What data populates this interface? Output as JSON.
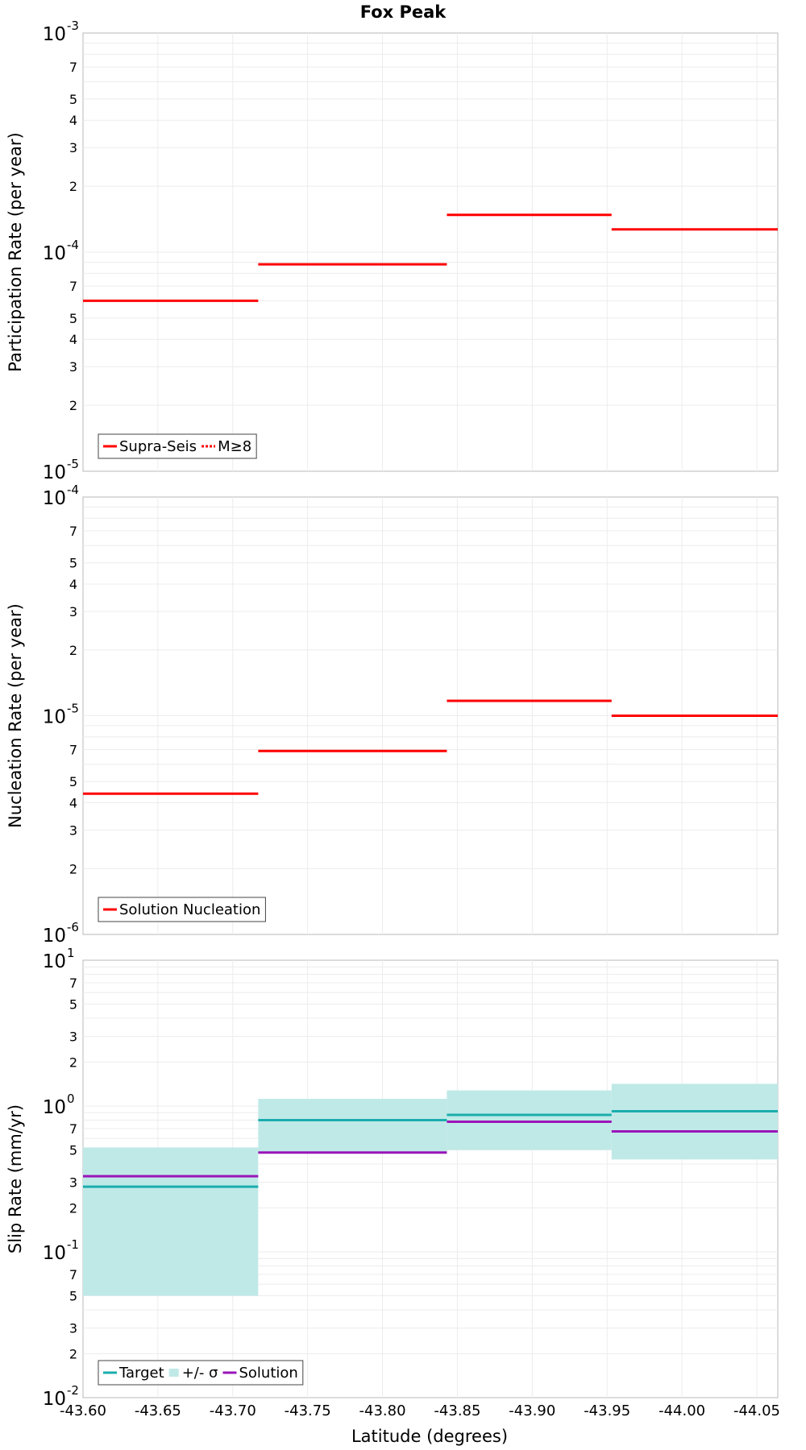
{
  "title": "Fox Peak",
  "xlabel": "Latitude (degrees)",
  "chart_data": [
    {
      "type": "line",
      "name": "participation",
      "ylabel": "Participation Rate (per year)",
      "yscale": "log",
      "ylim": [
        1e-05,
        0.001
      ],
      "major_ticks": [
        {
          "value": 1e-05,
          "base": "10",
          "exp": "-5"
        },
        {
          "value": 0.0001,
          "base": "10",
          "exp": "-4"
        },
        {
          "value": 0.001,
          "base": "10",
          "exp": "-3"
        }
      ],
      "minor_labels": [
        {
          "value": 2e-05,
          "label": "2"
        },
        {
          "value": 3e-05,
          "label": "3"
        },
        {
          "value": 4e-05,
          "label": "4"
        },
        {
          "value": 5e-05,
          "label": "5"
        },
        {
          "value": 7e-05,
          "label": "7"
        },
        {
          "value": 0.0002,
          "label": "2"
        },
        {
          "value": 0.0003,
          "label": "3"
        },
        {
          "value": 0.0004,
          "label": "4"
        },
        {
          "value": 0.0005,
          "label": "5"
        },
        {
          "value": 0.0007,
          "label": "7"
        }
      ],
      "series": [
        {
          "name": "Supra-Seis",
          "color": "#ff0000",
          "style": "solid",
          "segments": [
            {
              "x0": -43.6,
              "x1": -43.717,
              "y": 6e-05
            },
            {
              "x0": -43.717,
              "x1": -43.843,
              "y": 8.8e-05
            },
            {
              "x0": -43.843,
              "x1": -43.953,
              "y": 0.000148
            },
            {
              "x0": -43.953,
              "x1": -44.064,
              "y": 0.000127
            }
          ]
        },
        {
          "name": "M≥8",
          "color": "#ff0000",
          "style": "dotted",
          "segments": []
        }
      ],
      "legend": [
        {
          "label": "Supra-Seis",
          "color": "#ff0000",
          "style": "solid"
        },
        {
          "label": "M≥8",
          "color": "#ff0000",
          "style": "dotted"
        }
      ]
    },
    {
      "type": "line",
      "name": "nucleation",
      "ylabel": "Nucleation Rate (per year)",
      "yscale": "log",
      "ylim": [
        1e-06,
        0.0001
      ],
      "major_ticks": [
        {
          "value": 1e-06,
          "base": "10",
          "exp": "-6"
        },
        {
          "value": 1e-05,
          "base": "10",
          "exp": "-5"
        },
        {
          "value": 0.0001,
          "base": "10",
          "exp": "-4"
        }
      ],
      "minor_labels": [
        {
          "value": 2e-06,
          "label": "2"
        },
        {
          "value": 3e-06,
          "label": "3"
        },
        {
          "value": 4e-06,
          "label": "4"
        },
        {
          "value": 5e-06,
          "label": "5"
        },
        {
          "value": 7e-06,
          "label": "7"
        },
        {
          "value": 2e-05,
          "label": "2"
        },
        {
          "value": 3e-05,
          "label": "3"
        },
        {
          "value": 4e-05,
          "label": "4"
        },
        {
          "value": 5e-05,
          "label": "5"
        },
        {
          "value": 7e-05,
          "label": "7"
        }
      ],
      "series": [
        {
          "name": "Solution Nucleation",
          "color": "#ff0000",
          "style": "solid",
          "segments": [
            {
              "x0": -43.6,
              "x1": -43.717,
              "y": 4.4e-06
            },
            {
              "x0": -43.717,
              "x1": -43.843,
              "y": 6.9e-06
            },
            {
              "x0": -43.843,
              "x1": -43.953,
              "y": 1.17e-05
            },
            {
              "x0": -43.953,
              "x1": -44.064,
              "y": 1e-05
            }
          ]
        }
      ],
      "legend": [
        {
          "label": "Solution Nucleation",
          "color": "#ff0000",
          "style": "solid"
        }
      ]
    },
    {
      "type": "line",
      "name": "slip",
      "ylabel": "Slip Rate (mm/yr)",
      "yscale": "log",
      "ylim": [
        0.01,
        10
      ],
      "major_ticks": [
        {
          "value": 0.01,
          "base": "10",
          "exp": "-2"
        },
        {
          "value": 0.1,
          "base": "10",
          "exp": "-1"
        },
        {
          "value": 1,
          "base": "10",
          "exp": "0"
        },
        {
          "value": 10,
          "base": "10",
          "exp": "1"
        }
      ],
      "minor_labels": [
        {
          "value": 0.02,
          "label": "2"
        },
        {
          "value": 0.03,
          "label": "3"
        },
        {
          "value": 0.05,
          "label": "5"
        },
        {
          "value": 0.07,
          "label": "7"
        },
        {
          "value": 0.2,
          "label": "2"
        },
        {
          "value": 0.3,
          "label": "3"
        },
        {
          "value": 0.5,
          "label": "5"
        },
        {
          "value": 0.7,
          "label": "7"
        },
        {
          "value": 2,
          "label": "2"
        },
        {
          "value": 3,
          "label": "3"
        },
        {
          "value": 5,
          "label": "5"
        },
        {
          "value": 7,
          "label": "7"
        }
      ],
      "bands": [
        {
          "name": "+/- σ",
          "color": "#bfe9e7",
          "segments": [
            {
              "x0": -43.6,
              "x1": -43.717,
              "low": 0.05,
              "high": 0.52
            },
            {
              "x0": -43.717,
              "x1": -43.843,
              "low": 0.48,
              "high": 1.12
            },
            {
              "x0": -43.843,
              "x1": -43.953,
              "low": 0.5,
              "high": 1.28
            },
            {
              "x0": -43.953,
              "x1": -44.064,
              "low": 0.43,
              "high": 1.42
            }
          ]
        }
      ],
      "series": [
        {
          "name": "Target",
          "color": "#1aadad",
          "style": "solid",
          "segments": [
            {
              "x0": -43.6,
              "x1": -43.717,
              "y": 0.28
            },
            {
              "x0": -43.717,
              "x1": -43.843,
              "y": 0.8
            },
            {
              "x0": -43.843,
              "x1": -43.953,
              "y": 0.87
            },
            {
              "x0": -43.953,
              "x1": -44.064,
              "y": 0.92
            }
          ]
        },
        {
          "name": "Solution",
          "color": "#9a14b9",
          "style": "solid",
          "segments": [
            {
              "x0": -43.6,
              "x1": -43.717,
              "y": 0.33
            },
            {
              "x0": -43.717,
              "x1": -43.843,
              "y": 0.48
            },
            {
              "x0": -43.843,
              "x1": -43.953,
              "y": 0.78
            },
            {
              "x0": -43.953,
              "x1": -44.064,
              "y": 0.67
            }
          ]
        }
      ],
      "legend": [
        {
          "label": "Target",
          "color": "#1aadad",
          "style": "solid"
        },
        {
          "label": "+/- σ",
          "color": "#bfe9e7",
          "style": "band"
        },
        {
          "label": "Solution",
          "color": "#9a14b9",
          "style": "solid"
        }
      ]
    }
  ],
  "x_axis": {
    "min": -43.6,
    "max": -44.064,
    "ticks": [
      {
        "value": -43.6,
        "label": "-43.60"
      },
      {
        "value": -43.65,
        "label": "-43.65"
      },
      {
        "value": -43.7,
        "label": "-43.70"
      },
      {
        "value": -43.75,
        "label": "-43.75"
      },
      {
        "value": -43.8,
        "label": "-43.80"
      },
      {
        "value": -43.85,
        "label": "-43.85"
      },
      {
        "value": -43.9,
        "label": "-43.90"
      },
      {
        "value": -43.95,
        "label": "-43.95"
      },
      {
        "value": -44.0,
        "label": "-44.00"
      },
      {
        "value": -44.05,
        "label": "-44.05"
      }
    ]
  }
}
